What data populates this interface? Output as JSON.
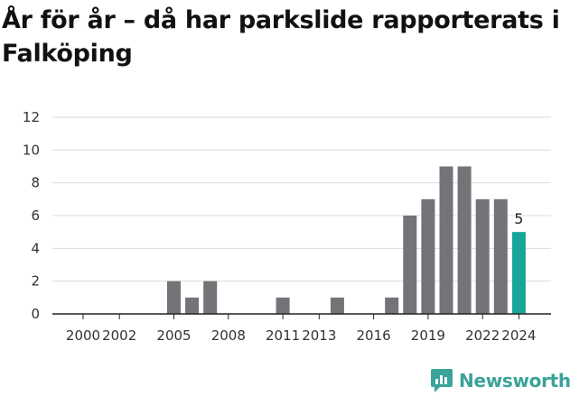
{
  "brand": {
    "name": "Newsworthy",
    "icon": "newsworthy-logo-icon",
    "color": "#3aa39a"
  },
  "chart_data": {
    "type": "bar",
    "title": "År för år – då har parkslide rapporterats i Falköping",
    "xlabel": "",
    "ylabel": "",
    "ylim": [
      0,
      12
    ],
    "yticks": [
      "0",
      "2",
      "4",
      "6",
      "8",
      "10",
      "12"
    ],
    "grid": true,
    "categories": [
      "2000",
      "2001",
      "2002",
      "2003",
      "2004",
      "2005",
      "2006",
      "2007",
      "2008",
      "2009",
      "2010",
      "2011",
      "2012",
      "2013",
      "2014",
      "2015",
      "2016",
      "2017",
      "2018",
      "2019",
      "2020",
      "2021",
      "2022",
      "2023",
      "2024"
    ],
    "xtick_labels": [
      "2000",
      "2002",
      "2005",
      "2008",
      "2011",
      "2013",
      "2016",
      "2019",
      "2022",
      "2024"
    ],
    "values": [
      0,
      0,
      0,
      0,
      0,
      2,
      1,
      2,
      0,
      0,
      0,
      1,
      0,
      0,
      1,
      0,
      0,
      1,
      6,
      7,
      9,
      9,
      7,
      7,
      5
    ],
    "bar_color": "#737378",
    "highlight": {
      "category": "2024",
      "color": "#1aa59b",
      "label": "5"
    }
  }
}
